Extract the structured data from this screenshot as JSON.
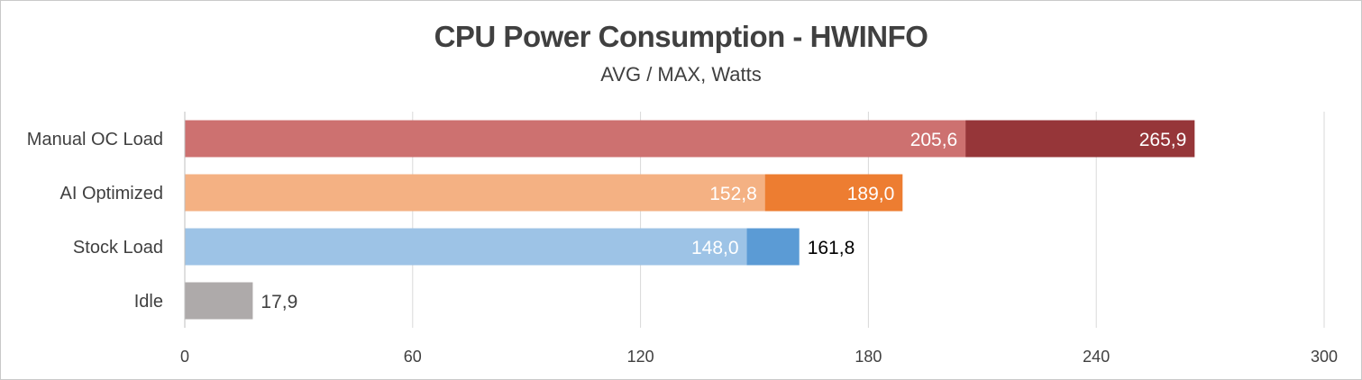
{
  "chart_data": {
    "type": "bar",
    "orientation": "horizontal",
    "stacked": true,
    "title": "CPU Power Consumption - HWINFO",
    "subtitle": "AVG / MAX, Watts",
    "xlim": [
      0,
      300
    ],
    "xticks": [
      0,
      60,
      120,
      180,
      240,
      300
    ],
    "grid": true,
    "categories": [
      "Manual OC Load",
      "AI Optimized",
      "Stock Load",
      "Idle"
    ],
    "bars": [
      {
        "category": "Manual OC Load",
        "segments": [
          {
            "value": 205.6,
            "label": "205,6",
            "color": "#cd7170",
            "label_color": "#ffffff"
          },
          {
            "value": 265.9,
            "label": "265,9",
            "color": "#963639",
            "label_color": "#ffffff"
          }
        ]
      },
      {
        "category": "AI Optimized",
        "segments": [
          {
            "value": 152.8,
            "label": "152,8",
            "color": "#f4b183",
            "label_color": "#ffffff"
          },
          {
            "value": 189.0,
            "label": "189,0",
            "color": "#ed7d31",
            "label_color": "#ffffff"
          }
        ]
      },
      {
        "category": "Stock Load",
        "segments": [
          {
            "value": 148.0,
            "label": "148,0",
            "color": "#9dc3e6",
            "label_color": "#ffffff"
          },
          {
            "value": 161.8,
            "label": "161,8",
            "color": "#5b9bd5",
            "label_color": "#000000",
            "label_outside": true
          }
        ]
      },
      {
        "category": "Idle",
        "segments": [
          {
            "value": 17.9,
            "label": "17,9",
            "color": "#aeaaaa",
            "label_color": "#404040",
            "label_outside": true
          }
        ]
      }
    ]
  }
}
